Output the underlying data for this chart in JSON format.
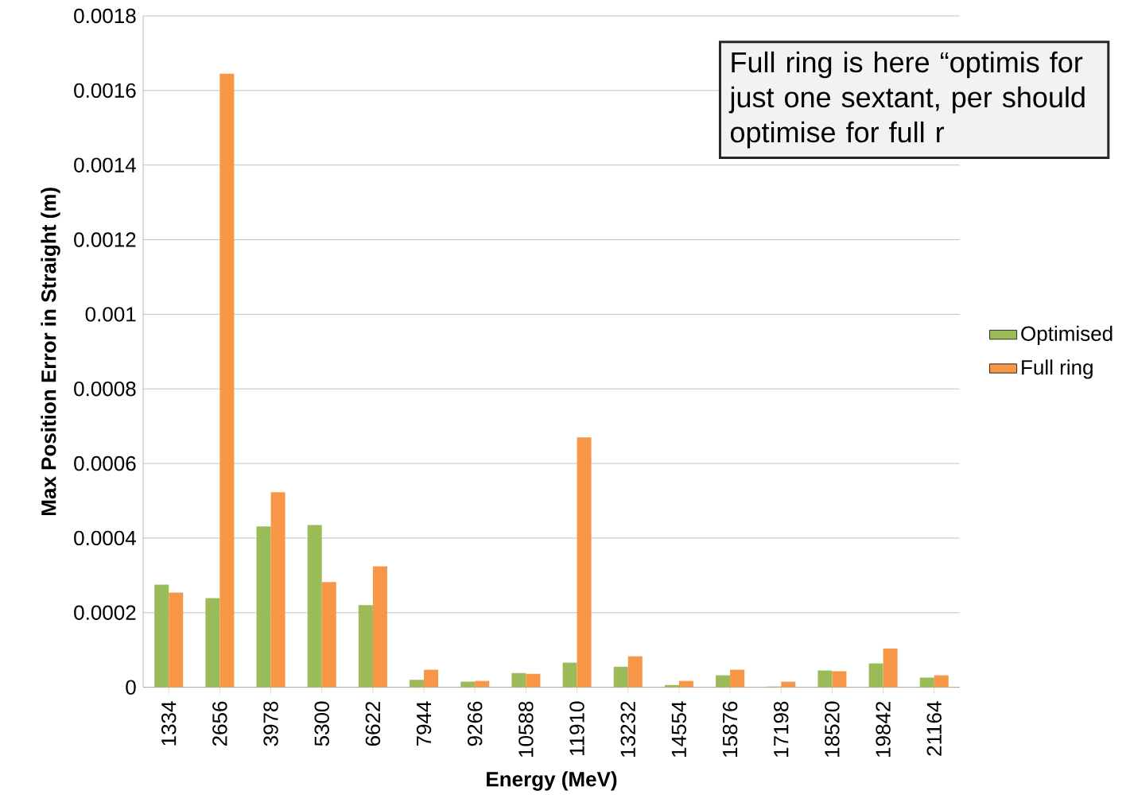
{
  "chart_data": {
    "type": "bar",
    "xlabel": "Energy (MeV)",
    "ylabel": "Max Position Error in Straight (m)",
    "categories": [
      "1334",
      "2656",
      "3978",
      "5300",
      "6622",
      "7944",
      "9266",
      "10588",
      "11910",
      "13232",
      "14554",
      "15876",
      "17198",
      "18520",
      "19842",
      "21164"
    ],
    "series": [
      {
        "name": "Optimised",
        "color": "#9bbb59",
        "values": [
          0.000275,
          0.000239,
          0.000431,
          0.000435,
          0.00022,
          2e-05,
          1.5e-05,
          3.8e-05,
          6.6e-05,
          5.5e-05,
          6e-06,
          3.2e-05,
          2e-06,
          4.5e-05,
          6.4e-05,
          2.6e-05
        ]
      },
      {
        "name": "Full ring",
        "color": "#f79646",
        "values": [
          0.000254,
          0.001645,
          0.000523,
          0.000282,
          0.000324,
          4.7e-05,
          1.7e-05,
          3.6e-05,
          0.00067,
          8.3e-05,
          1.7e-05,
          4.7e-05,
          1.5e-05,
          4.3e-05,
          0.000104,
          3.2e-05
        ]
      }
    ],
    "ylim": [
      0,
      0.0018
    ],
    "yticks": [
      0,
      0.0002,
      0.0004,
      0.0006,
      0.0008,
      0.001,
      0.0012,
      0.0014,
      0.0016,
      0.0018
    ],
    "grid": "y",
    "legend": "right",
    "annotations": [
      "Full ring is here “optimis for just one sextant, per should optimise for full r"
    ]
  }
}
